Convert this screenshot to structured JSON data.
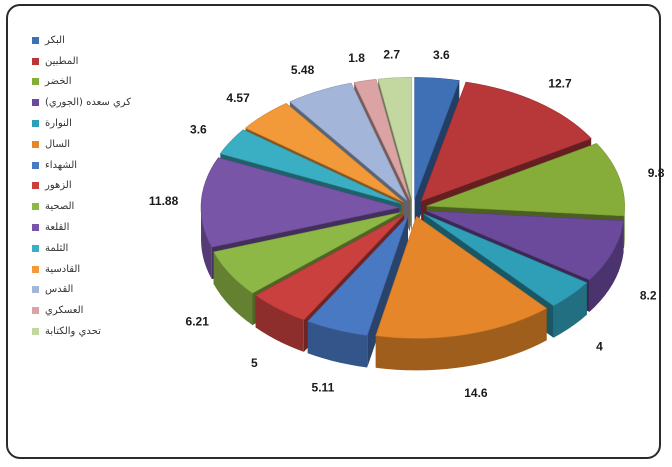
{
  "chart_data": {
    "type": "pie",
    "title": "",
    "legend_position": "left",
    "slices": [
      {
        "label": "البكر",
        "value": 3.6,
        "color": "#3f6fb5"
      },
      {
        "label": "المطبين",
        "value": 12.7,
        "color": "#b8383a"
      },
      {
        "label": "الخضر",
        "value": 9.8,
        "color": "#86ad3a"
      },
      {
        "label": "كري سعده (الجوري)",
        "value": 8.2,
        "color": "#6b4a9b"
      },
      {
        "label": "النوارة",
        "value": 4,
        "color": "#2f9fb8"
      },
      {
        "label": "السال",
        "value": 14.6,
        "color": "#e5862a"
      },
      {
        "label": "الشهداء",
        "value": 5.11,
        "color": "#4a79c4"
      },
      {
        "label": "الزهور",
        "value": 5,
        "color": "#c9403f"
      },
      {
        "label": "الصحية",
        "value": 6.21,
        "color": "#8db845"
      },
      {
        "label": "القلعة",
        "value": 11.88,
        "color": "#7855a6"
      },
      {
        "label": "الثلمة",
        "value": 3.6,
        "color": "#3aaec2"
      },
      {
        "label": "القادسية",
        "value": 4.57,
        "color": "#f29a3a"
      },
      {
        "label": "القدس",
        "value": 5.48,
        "color": "#a3b6d9"
      },
      {
        "label": "العسكري",
        "value": 1.8,
        "color": "#dba3a3"
      },
      {
        "label": "تحدي والكتابة",
        "value": 2.7,
        "color": "#c3d7a0"
      }
    ]
  }
}
